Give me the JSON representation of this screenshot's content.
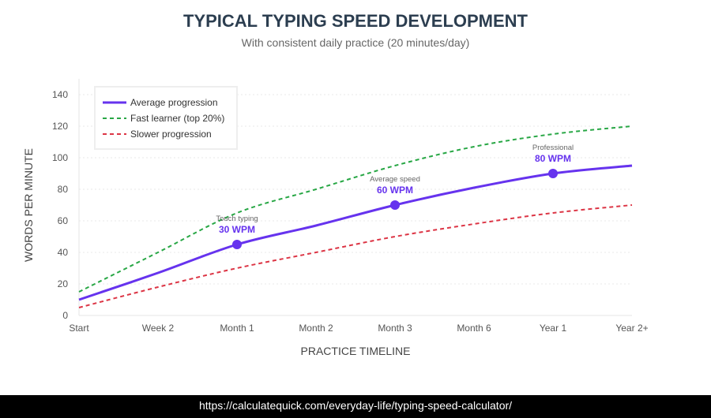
{
  "chart_data": {
    "type": "line",
    "title": "TYPICAL TYPING SPEED DEVELOPMENT",
    "subtitle": "With consistent daily practice (20 minutes/day)",
    "xlabel": "PRACTICE TIMELINE",
    "ylabel": "WORDS PER MINUTE",
    "categories": [
      "Start",
      "Week 2",
      "Month 1",
      "Month 2",
      "Month 3",
      "Month 6",
      "Year 1",
      "Year 2+"
    ],
    "ylim": [
      0,
      140
    ],
    "yticks": [
      0,
      20,
      40,
      60,
      80,
      100,
      120,
      140
    ],
    "grid": true,
    "legend_position": "top-left",
    "series": [
      {
        "name": "Average progression",
        "values": [
          10,
          27,
          45,
          57,
          70,
          81,
          90,
          95
        ],
        "color": "#6633ee",
        "style": "solid"
      },
      {
        "name": "Fast learner (top 20%)",
        "values": [
          15,
          40,
          65,
          80,
          95,
          107,
          115,
          120
        ],
        "color": "#28a745",
        "style": "dashed"
      },
      {
        "name": "Slower progression",
        "values": [
          5,
          18,
          30,
          40,
          50,
          58,
          65,
          70
        ],
        "color": "#dc3545",
        "style": "dashed"
      }
    ],
    "annotations": [
      {
        "category": "Month 1",
        "label": "Touch typing",
        "value_label": "30 WPM"
      },
      {
        "category": "Month 3",
        "label": "Average speed",
        "value_label": "60 WPM"
      },
      {
        "category": "Year 1",
        "label": "Professional",
        "value_label": "80 WPM"
      }
    ]
  },
  "footer": {
    "url": "https://calculatequick.com/everyday-life/typing-speed-calculator/"
  }
}
